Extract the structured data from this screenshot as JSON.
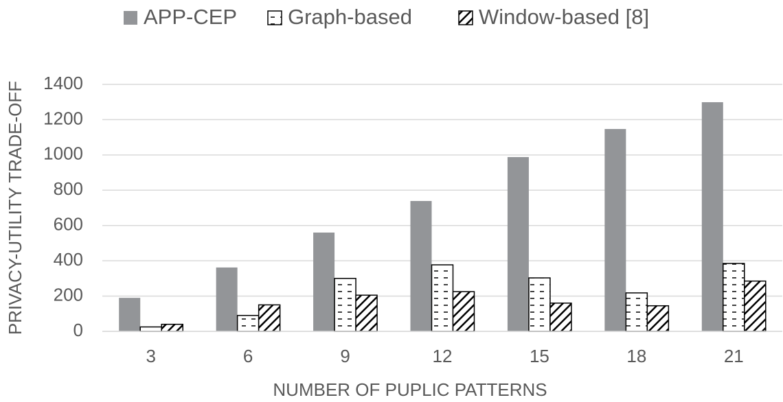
{
  "chart_data": {
    "type": "bar",
    "x_label": "NUMBER OF PUPLIC PATTERNS",
    "y_label": "PRIVACY-UTILITY TRADE-OFF",
    "categories": [
      "3",
      "6",
      "9",
      "12",
      "15",
      "18",
      "21"
    ],
    "series": [
      {
        "name": "APP-CEP",
        "color": "#939598",
        "pattern": "solid",
        "values": [
          190,
          362,
          560,
          739,
          988,
          1147,
          1299
        ]
      },
      {
        "name": "Graph-based",
        "color": "#000000",
        "pattern": "dashes",
        "values": [
          25,
          90,
          300,
          377,
          303,
          218,
          385
        ]
      },
      {
        "name": "Window-based [8]",
        "color": "#000000",
        "pattern": "hatch",
        "values": [
          40,
          150,
          205,
          225,
          160,
          145,
          285
        ]
      }
    ],
    "ylim": [
      0,
      1400
    ],
    "yticks": [
      0,
      200,
      400,
      600,
      800,
      1000,
      1200,
      1400
    ],
    "grid": true,
    "legend": "top"
  }
}
